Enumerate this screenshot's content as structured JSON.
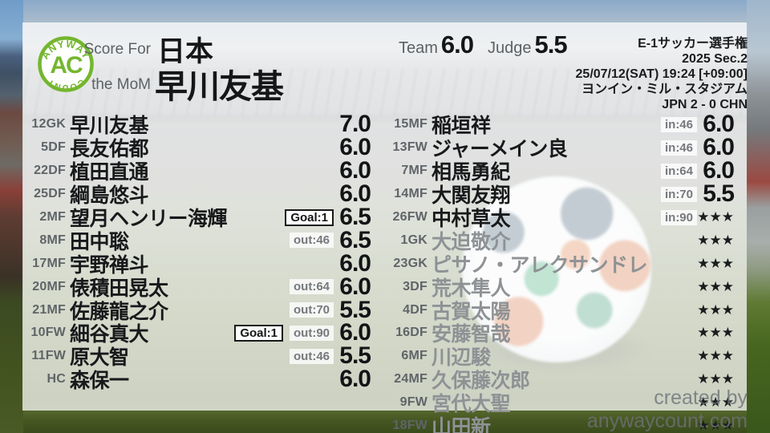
{
  "logo": {
    "arc_top": "ANYWAY",
    "center": "AC",
    "arc_bottom": "COUNT"
  },
  "header": {
    "score_for_label": "Score For",
    "team_name": "日本",
    "mom_label": "the MoM",
    "mom_name": "早川友基",
    "team_label": "Team",
    "team_score": "6.0",
    "judge_label": "Judge",
    "judge_score": "5.5",
    "info_lines": [
      "E-1サッカー選手権",
      "2025 Sec.2",
      "25/07/12(SAT) 19:24 [+09:00]",
      "ヨンイン・ミル・スタジアム",
      "JPN 2 - 0 CHN"
    ]
  },
  "left_column": {
    "players": [
      {
        "pos": "12GK",
        "name": "早川友基",
        "badges": [],
        "rating": "7.0",
        "played": true
      },
      {
        "pos": "5DF",
        "name": "長友佑都",
        "badges": [],
        "rating": "6.0",
        "played": true
      },
      {
        "pos": "22DF",
        "name": "植田直通",
        "badges": [],
        "rating": "6.0",
        "played": true
      },
      {
        "pos": "25DF",
        "name": "綱島悠斗",
        "badges": [],
        "rating": "6.0",
        "played": true
      },
      {
        "pos": "2MF",
        "name": "望月ヘンリー海輝",
        "badges": [
          {
            "type": "goal",
            "label": "Goal:1"
          }
        ],
        "rating": "6.5",
        "played": true
      },
      {
        "pos": "8MF",
        "name": "田中聡",
        "badges": [
          {
            "type": "sub",
            "label": "out:46"
          }
        ],
        "rating": "6.5",
        "played": true
      },
      {
        "pos": "17MF",
        "name": "宇野禅斗",
        "badges": [],
        "rating": "6.0",
        "played": true
      },
      {
        "pos": "20MF",
        "name": "俵積田晃太",
        "badges": [
          {
            "type": "sub",
            "label": "out:64"
          }
        ],
        "rating": "6.0",
        "played": true
      },
      {
        "pos": "21MF",
        "name": "佐藤龍之介",
        "badges": [
          {
            "type": "sub",
            "label": "out:70"
          }
        ],
        "rating": "5.5",
        "played": true
      },
      {
        "pos": "10FW",
        "name": "細谷真大",
        "badges": [
          {
            "type": "goal",
            "label": "Goal:1"
          },
          {
            "type": "sub",
            "label": "out:90"
          }
        ],
        "rating": "6.0",
        "played": true
      },
      {
        "pos": "11FW",
        "name": "原大智",
        "badges": [
          {
            "type": "sub",
            "label": "out:46"
          }
        ],
        "rating": "5.5",
        "played": true
      },
      {
        "pos": "HC",
        "name": "森保一",
        "badges": [],
        "rating": "6.0",
        "played": true
      }
    ]
  },
  "right_column": {
    "players": [
      {
        "pos": "15MF",
        "name": "稲垣祥",
        "badges": [
          {
            "type": "sub",
            "label": "in:46"
          }
        ],
        "rating": "6.0",
        "played": true
      },
      {
        "pos": "13FW",
        "name": "ジャーメイン良",
        "badges": [
          {
            "type": "sub",
            "label": "in:46"
          }
        ],
        "rating": "6.0",
        "played": true
      },
      {
        "pos": "7MF",
        "name": "相馬勇紀",
        "badges": [
          {
            "type": "sub",
            "label": "in:64"
          }
        ],
        "rating": "6.0",
        "played": true
      },
      {
        "pos": "14MF",
        "name": "大関友翔",
        "badges": [
          {
            "type": "sub",
            "label": "in:70"
          }
        ],
        "rating": "5.5",
        "played": true
      },
      {
        "pos": "26FW",
        "name": "中村草太",
        "badges": [
          {
            "type": "sub",
            "label": "in:90"
          }
        ],
        "rating": "★★★",
        "played": true
      },
      {
        "pos": "1GK",
        "name": "大迫敬介",
        "badges": [],
        "rating": "★★★",
        "played": false
      },
      {
        "pos": "23GK",
        "name": "ピサノ・アレクサンドレ",
        "badges": [],
        "rating": "★★★",
        "played": false
      },
      {
        "pos": "3DF",
        "name": "荒木隼人",
        "badges": [],
        "rating": "★★★",
        "played": false
      },
      {
        "pos": "4DF",
        "name": "古賀太陽",
        "badges": [],
        "rating": "★★★",
        "played": false
      },
      {
        "pos": "16DF",
        "name": "安藤智哉",
        "badges": [],
        "rating": "★★★",
        "played": false
      },
      {
        "pos": "6MF",
        "name": "川辺駿",
        "badges": [],
        "rating": "★★★",
        "played": false
      },
      {
        "pos": "24MF",
        "name": "久保藤次郎",
        "badges": [],
        "rating": "★★★",
        "played": false
      },
      {
        "pos": "9FW",
        "name": "宮代大聖",
        "badges": [],
        "rating": "★★★",
        "played": false
      },
      {
        "pos": "18FW",
        "name": "山田新",
        "badges": [],
        "rating": "★★★",
        "played": false
      }
    ]
  },
  "footer": {
    "credit": "created by anywaycount.com"
  },
  "colors": {
    "logo_green": "#74b62e",
    "name_black": "#17191b",
    "sub_gray": "#8e9295"
  }
}
